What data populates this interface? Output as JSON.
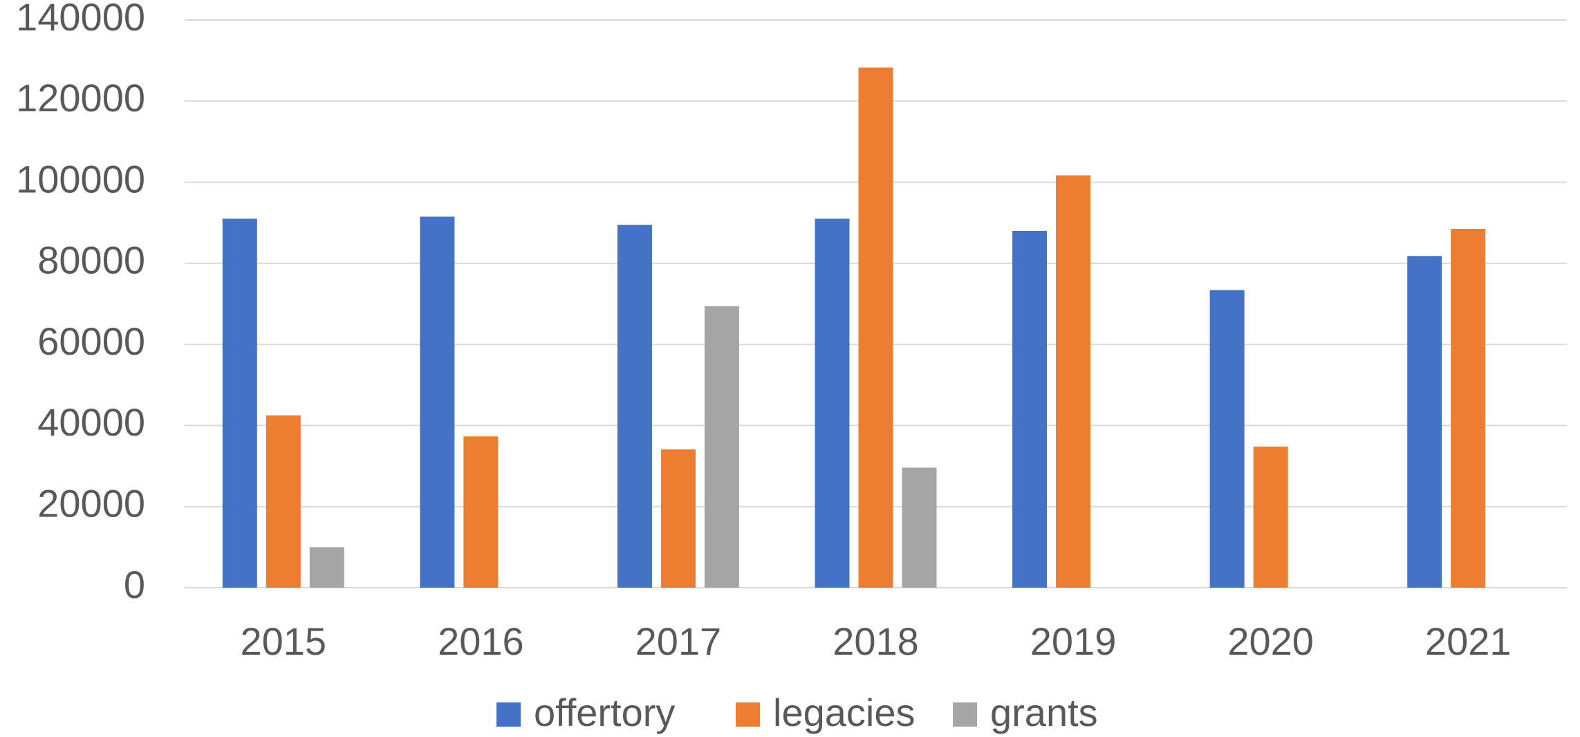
{
  "chart_data": {
    "type": "bar",
    "categories": [
      "2015",
      "2016",
      "2017",
      "2018",
      "2019",
      "2020",
      "2021"
    ],
    "series": [
      {
        "name": "offertory",
        "color": "#4472c4",
        "values": [
          91000,
          91500,
          89500,
          91000,
          88000,
          73400,
          81800
        ]
      },
      {
        "name": "legacies",
        "color": "#ed7d31",
        "values": [
          42500,
          37300,
          34100,
          128300,
          101700,
          34800,
          88500
        ]
      },
      {
        "name": "grants",
        "color": "#a5a5a5",
        "values": [
          10000,
          null,
          69400,
          29600,
          null,
          null,
          null
        ]
      }
    ],
    "ylim": [
      0,
      140000
    ],
    "yticks": [
      0,
      20000,
      40000,
      60000,
      80000,
      100000,
      120000,
      140000
    ],
    "grid": true,
    "legend": "bottom"
  }
}
